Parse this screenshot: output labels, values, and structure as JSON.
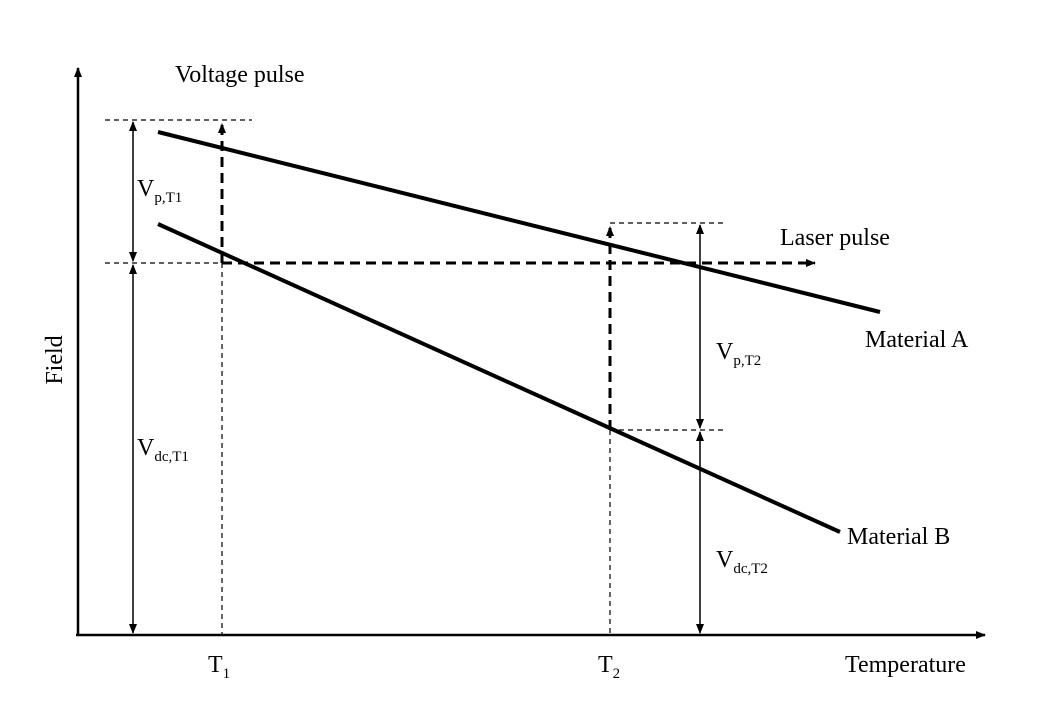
{
  "y_axis_label": "Field",
  "x_axis_label": "Temperature",
  "voltage_pulse": "Voltage pulse",
  "laser_pulse": "Laser pulse",
  "material_a": "Material A",
  "material_b": "Material B",
  "t1": {
    "main": "T",
    "sub": "1"
  },
  "t2": {
    "main": "T",
    "sub": "2"
  },
  "vp_t1": {
    "main": "V",
    "sub": "p,T1"
  },
  "vdc_t1": {
    "main": "V",
    "sub": "dc,T1"
  },
  "vp_t2": {
    "main": "V",
    "sub": "p,T2"
  },
  "vdc_t2": {
    "main": "V",
    "sub": "dc,T2"
  }
}
